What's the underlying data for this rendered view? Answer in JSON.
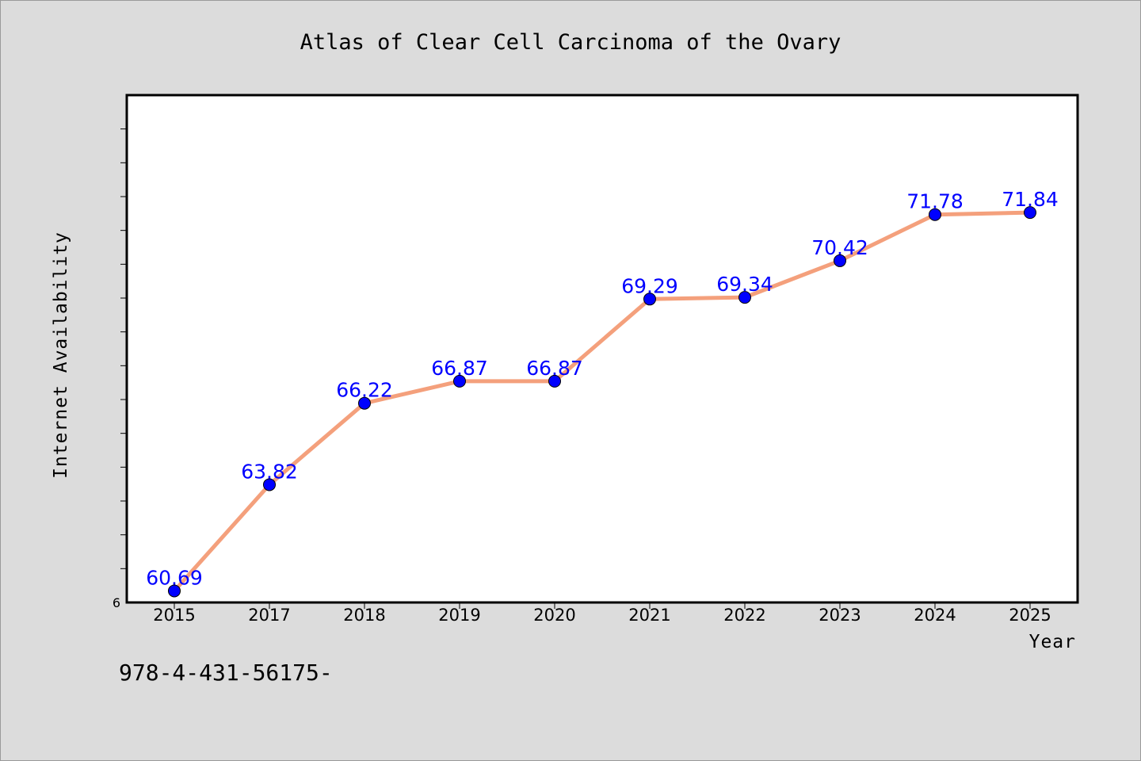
{
  "chart_data": {
    "type": "line",
    "title": "Atlas of Clear Cell Carcinoma of the Ovary",
    "xlabel": "Year",
    "ylabel": "Internet Availability",
    "categories": [
      "2015",
      "2017",
      "2018",
      "2019",
      "2020",
      "2021",
      "2022",
      "2023",
      "2024",
      "2025"
    ],
    "series": [
      {
        "values": [
          60.69,
          63.82,
          66.22,
          66.87,
          66.87,
          69.29,
          69.34,
          70.42,
          71.78,
          71.84
        ],
        "labels": [
          "60.69",
          "63.82",
          "66.22",
          "66.87",
          "66.87",
          "69.29",
          "69.34",
          "70.42",
          "71.78",
          "71.84"
        ],
        "line_color": "#f4a07c",
        "marker_color": "#0000ff"
      }
    ],
    "ylim": [
      60.35,
      75.3
    ],
    "y_tick_label": "6",
    "y_tick_count": 14,
    "grid": false,
    "legend": "none"
  },
  "footer_text": "978-4-431-56175-"
}
